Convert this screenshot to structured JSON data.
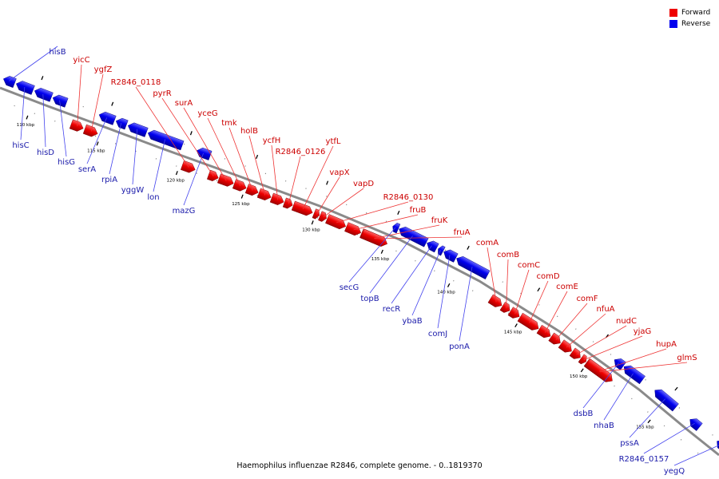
{
  "caption": "Haemophilus influenzae R2846, complete genome. - 0..1819370",
  "colors": {
    "forward": "#ee0000",
    "reverse": "#0000ee",
    "backbone": "#888888",
    "text_forward": "#cc0000",
    "text_reverse": "#1a1aaa"
  },
  "legend": [
    {
      "label": "Forward",
      "color": "#ee0000"
    },
    {
      "label": "Reverse",
      "color": "#0000ee"
    }
  ],
  "ticks": [
    "110 kbp",
    "115 kbp",
    "120 kbp",
    "125 kbp",
    "130 kbp",
    "135 kbp",
    "140 kbp",
    "145 kbp",
    "150 kbp",
    "155 kbp"
  ],
  "genes": [
    {
      "name": "hisB",
      "strand": "reverse"
    },
    {
      "name": "hisC",
      "strand": "reverse"
    },
    {
      "name": "hisD",
      "strand": "reverse"
    },
    {
      "name": "hisG",
      "strand": "reverse"
    },
    {
      "name": "yicC",
      "strand": "forward"
    },
    {
      "name": "ygfZ",
      "strand": "forward"
    },
    {
      "name": "serA",
      "strand": "reverse"
    },
    {
      "name": "rpiA",
      "strand": "reverse"
    },
    {
      "name": "yggW",
      "strand": "reverse"
    },
    {
      "name": "lon",
      "strand": "reverse"
    },
    {
      "name": "R2846_0118",
      "strand": "forward"
    },
    {
      "name": "mazG",
      "strand": "reverse"
    },
    {
      "name": "pyrR",
      "strand": "forward"
    },
    {
      "name": "surA",
      "strand": "forward"
    },
    {
      "name": "yceG",
      "strand": "forward"
    },
    {
      "name": "tmk",
      "strand": "forward"
    },
    {
      "name": "holB",
      "strand": "forward"
    },
    {
      "name": "ycfH",
      "strand": "forward"
    },
    {
      "name": "R2846_0126",
      "strand": "forward"
    },
    {
      "name": "ytfL",
      "strand": "forward"
    },
    {
      "name": "vapX",
      "strand": "forward"
    },
    {
      "name": "vapD",
      "strand": "forward"
    },
    {
      "name": "R2846_0130",
      "strand": "forward"
    },
    {
      "name": "fruB",
      "strand": "forward"
    },
    {
      "name": "fruK",
      "strand": "forward"
    },
    {
      "name": "fruA",
      "strand": "forward"
    },
    {
      "name": "secG",
      "strand": "reverse"
    },
    {
      "name": "topB",
      "strand": "reverse"
    },
    {
      "name": "recR",
      "strand": "reverse"
    },
    {
      "name": "ybaB",
      "strand": "reverse"
    },
    {
      "name": "comJ",
      "strand": "reverse"
    },
    {
      "name": "ponA",
      "strand": "reverse"
    },
    {
      "name": "comA",
      "strand": "forward"
    },
    {
      "name": "comB",
      "strand": "forward"
    },
    {
      "name": "comC",
      "strand": "forward"
    },
    {
      "name": "comD",
      "strand": "forward"
    },
    {
      "name": "comE",
      "strand": "forward"
    },
    {
      "name": "comF",
      "strand": "forward"
    },
    {
      "name": "nfuA",
      "strand": "forward"
    },
    {
      "name": "nudC",
      "strand": "forward"
    },
    {
      "name": "yjaG",
      "strand": "forward"
    },
    {
      "name": "hupA",
      "strand": "forward"
    },
    {
      "name": "glmS",
      "strand": "forward"
    },
    {
      "name": "dsbB",
      "strand": "reverse"
    },
    {
      "name": "nhaB",
      "strand": "reverse"
    },
    {
      "name": "pssA",
      "strand": "reverse"
    },
    {
      "name": "R2846_0157",
      "strand": "reverse"
    },
    {
      "name": "yegQ",
      "strand": "reverse"
    }
  ]
}
